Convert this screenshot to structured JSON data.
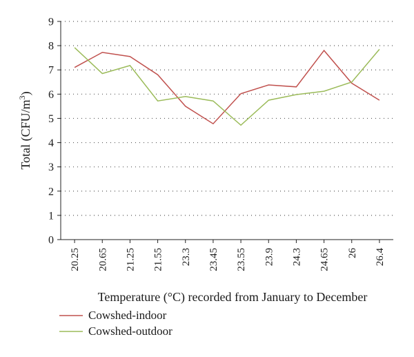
{
  "chart_data": {
    "type": "line",
    "x": [
      "20.25",
      "20.65",
      "21.25",
      "21.55",
      "23.3",
      "23.45",
      "23.55",
      "23.9",
      "24.3",
      "24.65",
      "26",
      "26.4"
    ],
    "series": [
      {
        "name": "Cowshed-indoor",
        "color": "#c0504d",
        "values": [
          7.1,
          7.72,
          7.55,
          6.8,
          5.5,
          4.78,
          6.02,
          6.38,
          6.3,
          7.8,
          6.45,
          5.75
        ]
      },
      {
        "name": "Cowshed-outdoor",
        "color": "#9bbb59",
        "values": [
          7.92,
          6.85,
          7.18,
          5.72,
          5.9,
          5.72,
          4.72,
          5.75,
          5.98,
          6.12,
          6.5,
          7.85
        ]
      }
    ],
    "xlabel": "Temperature (°C) recorded from January to December",
    "ylabel_main": "Total (CFU/m",
    "ylabel_sup": "3",
    "ylabel_close": ")",
    "ylim": [
      0,
      9
    ],
    "yticks": [
      "0",
      "1",
      "2",
      "3",
      "4",
      "5",
      "6",
      "7",
      "8",
      "9"
    ],
    "grid": true,
    "legend_position": "bottom-left"
  }
}
